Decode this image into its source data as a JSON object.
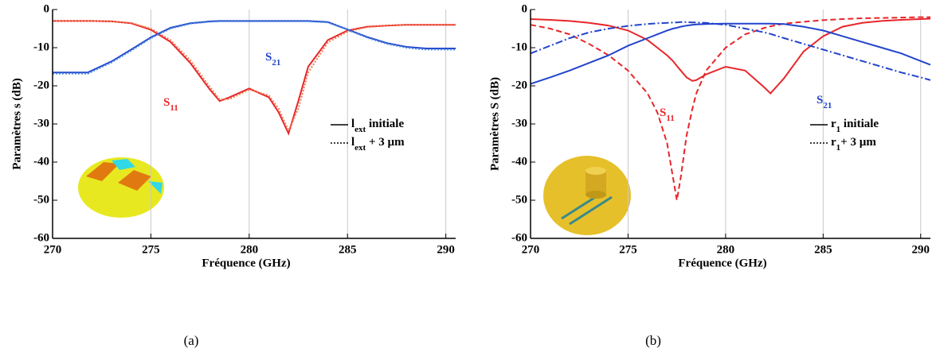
{
  "chart_data": [
    {
      "type": "line",
      "caption": "(a)",
      "xlabel": "Fréquence (GHz)",
      "ylabel": "Paramètres s (dB)",
      "xlim": [
        270,
        290.5
      ],
      "ylim": [
        -60,
        0
      ],
      "xticks": [
        270,
        275,
        280,
        285,
        290
      ],
      "yticks": [
        0,
        -10,
        -20,
        -30,
        -40,
        -50,
        -60
      ],
      "grid": "x",
      "x": [
        270,
        271,
        271.8,
        272,
        273,
        274,
        275,
        276,
        277,
        278,
        278.5,
        279,
        280,
        281,
        281.5,
        282,
        282.5,
        283,
        284,
        285,
        286,
        287,
        288,
        288.5,
        289,
        290,
        290.5
      ],
      "series": [
        {
          "color": "#e8262a",
          "dash": "solid",
          "values": [
            -3,
            -3,
            -3,
            -3,
            -3.1,
            -3.6,
            -5.3,
            -8.5,
            -14,
            -21,
            -24,
            -23,
            -20.7,
            -23,
            -27,
            -32.5,
            -24,
            -15,
            -8,
            -5.5,
            -4.5,
            -4.2,
            -4,
            -4,
            -4,
            -4,
            -4
          ]
        },
        {
          "color": "#f07a50",
          "dash": "dotted",
          "values": [
            -3,
            -3,
            -3,
            -3,
            -3.1,
            -3.5,
            -5,
            -8,
            -13.3,
            -20.3,
            -23.6,
            -23.5,
            -21,
            -22.5,
            -26,
            -31.8,
            -26,
            -16.5,
            -8.6,
            -5.8,
            -4.6,
            -4.2,
            -4,
            -4,
            -4,
            -4,
            -4
          ]
        },
        {
          "color": "#2244cc",
          "dash": "solid",
          "values": [
            -16.5,
            -16.5,
            -16.5,
            -16,
            -13.6,
            -10.5,
            -7.3,
            -4.8,
            -3.6,
            -3.1,
            -3,
            -3,
            -3,
            -3,
            -3,
            -3,
            -3,
            -3,
            -3.3,
            -5.2,
            -7.2,
            -8.8,
            -9.8,
            -10,
            -10.2,
            -10.2,
            -10.2
          ]
        },
        {
          "color": "#4a8ae0",
          "dash": "dotted",
          "values": [
            -16.8,
            -16.8,
            -16.8,
            -16.3,
            -13.9,
            -10.8,
            -7.5,
            -5,
            -3.7,
            -3.2,
            -3.1,
            -3.1,
            -3.1,
            -3.1,
            -3.1,
            -3.1,
            -3.1,
            -3.1,
            -3.4,
            -5.3,
            -7.4,
            -9,
            -10,
            -10.3,
            -10.5,
            -10.5,
            -10.5
          ]
        }
      ],
      "annotations": [
        {
          "base": "S",
          "sub": "11",
          "color": "#e8262a"
        },
        {
          "base": "S",
          "sub": "21",
          "color": "#2244cc"
        }
      ],
      "legend": [
        {
          "base": "l",
          "sub": "ext",
          "rest": " initiale",
          "dash": "solid"
        },
        {
          "base": "l",
          "sub": "ext",
          "rest": " + 3 µm",
          "dash": "dotted"
        }
      ]
    },
    {
      "type": "line",
      "caption": "(b)",
      "xlabel": "Fréquence (GHz)",
      "ylabel": "Paramètres S (dB)",
      "xlim": [
        270,
        290.5
      ],
      "ylim": [
        -60,
        0
      ],
      "xticks": [
        270,
        275,
        280,
        285,
        290
      ],
      "yticks": [
        0,
        -10,
        -20,
        -30,
        -40,
        -50,
        -60
      ],
      "grid": "x",
      "x": [
        270,
        271,
        272,
        273,
        274,
        275,
        276,
        276.5,
        277,
        277.3,
        277.5,
        277.7,
        278,
        278.3,
        278.5,
        279,
        280,
        281,
        282,
        282.3,
        283,
        284,
        285,
        286,
        287,
        288,
        289,
        290,
        290.5
      ],
      "series": [
        {
          "color": "#e8262a",
          "dash": "solid",
          "values": [
            -2.5,
            -2.7,
            -3,
            -3.5,
            -4.2,
            -5.5,
            -8,
            -10,
            -12,
            -13.5,
            -14.8,
            -16,
            -17.8,
            -18.7,
            -18.5,
            -17,
            -15,
            -16,
            -20.5,
            -22,
            -18,
            -11,
            -7,
            -4.5,
            -3.5,
            -3,
            -2.7,
            -2.5,
            -2.4
          ]
        },
        {
          "color": "#e8262a",
          "dash": "dashed",
          "values": [
            -4,
            -5,
            -6.5,
            -9,
            -12,
            -16,
            -22,
            -27,
            -35,
            -44,
            -50,
            -44,
            -33,
            -26,
            -22,
            -16,
            -10,
            -6.5,
            -4.8,
            -4.4,
            -3.7,
            -3.2,
            -2.8,
            -2.5,
            -2.3,
            -2.2,
            -2.1,
            -2,
            -2
          ]
        },
        {
          "color": "#2244cc",
          "dash": "solid",
          "values": [
            -19.5,
            -17.8,
            -16,
            -14,
            -12,
            -9.5,
            -7.5,
            -6.5,
            -5.5,
            -5,
            -4.8,
            -4.5,
            -4.2,
            -4,
            -3.9,
            -3.8,
            -3.7,
            -3.7,
            -3.7,
            -3.7,
            -3.8,
            -4.5,
            -5.5,
            -7,
            -8.5,
            -10,
            -11.5,
            -13.5,
            -14.5
          ]
        },
        {
          "color": "#2244cc",
          "dash": "dashdot",
          "values": [
            -11.5,
            -9.5,
            -7.5,
            -6,
            -5,
            -4.3,
            -3.8,
            -3.6,
            -3.5,
            -3.4,
            -3.4,
            -3.3,
            -3.3,
            -3.4,
            -3.4,
            -3.5,
            -4,
            -5,
            -6,
            -6.4,
            -7.5,
            -9,
            -10.5,
            -12,
            -13.5,
            -15,
            -16.5,
            -17.8,
            -18.5
          ]
        }
      ],
      "annotations": [
        {
          "base": "S",
          "sub": "11",
          "color": "#e8262a"
        },
        {
          "base": "S",
          "sub": "21",
          "color": "#2244cc"
        }
      ],
      "legend": [
        {
          "base": "r",
          "sub": "1",
          "rest": " initiale",
          "dash": "solid"
        },
        {
          "base": "r",
          "sub": "1",
          "rest": "+ 3 µm",
          "dash": "dotted"
        }
      ]
    }
  ]
}
